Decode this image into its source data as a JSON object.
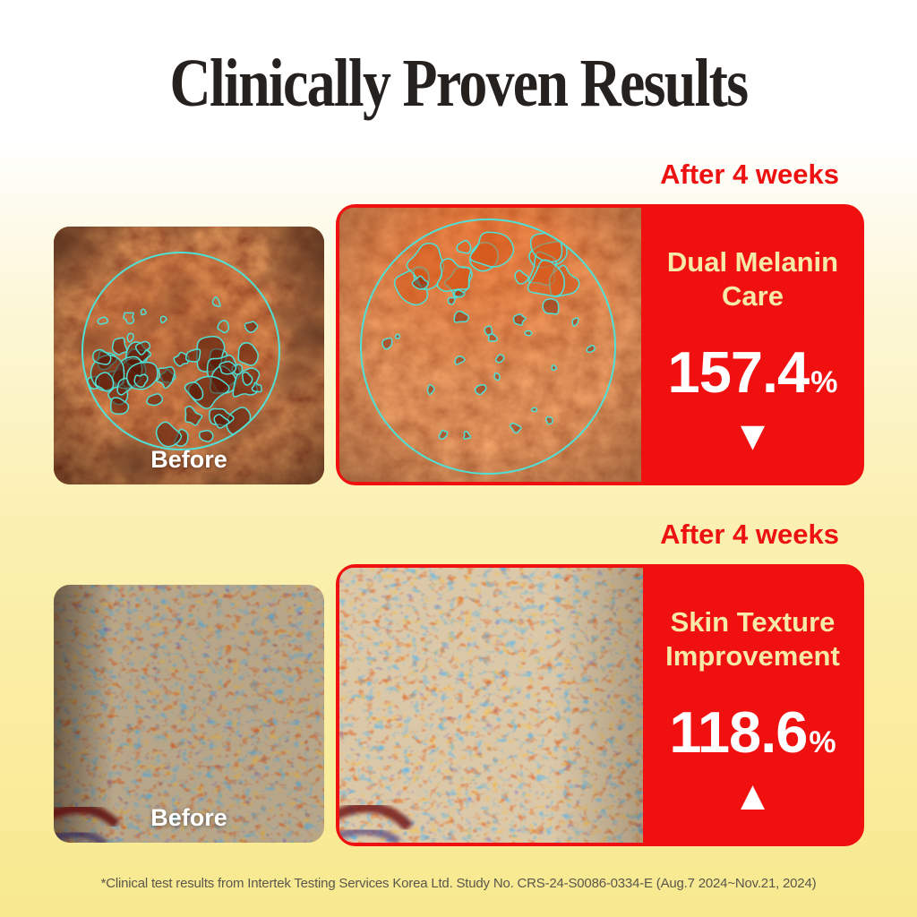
{
  "title": "Clinically Proven Results",
  "sections": [
    {
      "after_badge": "After 4 weeks",
      "before_label": "Before",
      "metric_line1": "Dual Melanin",
      "metric_line2": "Care",
      "value": "157.4",
      "unit": "%",
      "arrow": "▼",
      "trend": "decrease"
    },
    {
      "after_badge": "After 4 weeks",
      "before_label": "Before",
      "metric_line1": "Skin Texture",
      "metric_line2": "Improvement",
      "value": "118.6",
      "unit": "%",
      "arrow": "▲",
      "trend": "increase"
    }
  ],
  "footnote": "*Clinical test results from Intertek Testing Services Korea Ltd. Study No. CRS-24-S0086-0334-E (Aug.7 2024~Nov.21, 2024)",
  "colors": {
    "accent_red": "#f11010",
    "badge_red": "#ee1111",
    "cream_text": "#f7e9a8",
    "circle_cyan": "#4fe0d6",
    "title_ink": "#25211e",
    "background_yellow": "#f8e98f"
  }
}
